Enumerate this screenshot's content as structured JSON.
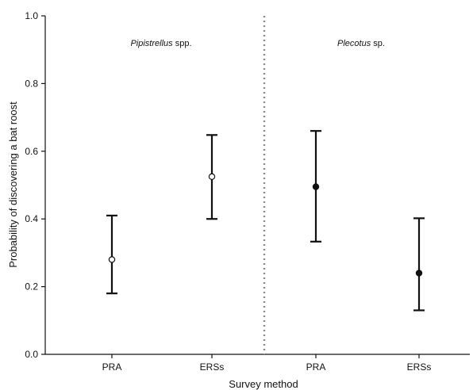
{
  "chart_data": {
    "type": "scatter",
    "xlabel": "Survey method",
    "ylabel": "Probability of discovering a bat roost",
    "ylim": [
      0.0,
      1.0
    ],
    "yticks": [
      "0.0",
      "0.2",
      "0.4",
      "0.6",
      "0.8",
      "1.0"
    ],
    "categories": [
      "PRA",
      "ERSs",
      "PRA",
      "ERSs"
    ],
    "grid": false,
    "panels": [
      {
        "label_italic": "Pipistrellus",
        "label_rest": " spp.",
        "marker": "open-circle",
        "marker_color": "#ffffff"
      },
      {
        "label_italic": "Plecotus",
        "label_rest": " sp.",
        "marker": "filled-circle",
        "marker_color": "#111111"
      }
    ],
    "points": [
      {
        "panel": 0,
        "category": "PRA",
        "estimate": 0.28,
        "lower": 0.18,
        "upper": 0.41
      },
      {
        "panel": 0,
        "category": "ERSs",
        "estimate": 0.525,
        "lower": 0.4,
        "upper": 0.648
      },
      {
        "panel": 1,
        "category": "PRA",
        "estimate": 0.495,
        "lower": 0.333,
        "upper": 0.66
      },
      {
        "panel": 1,
        "category": "ERSs",
        "estimate": 0.24,
        "lower": 0.13,
        "upper": 0.402
      }
    ],
    "divider": "dotted-vertical"
  }
}
